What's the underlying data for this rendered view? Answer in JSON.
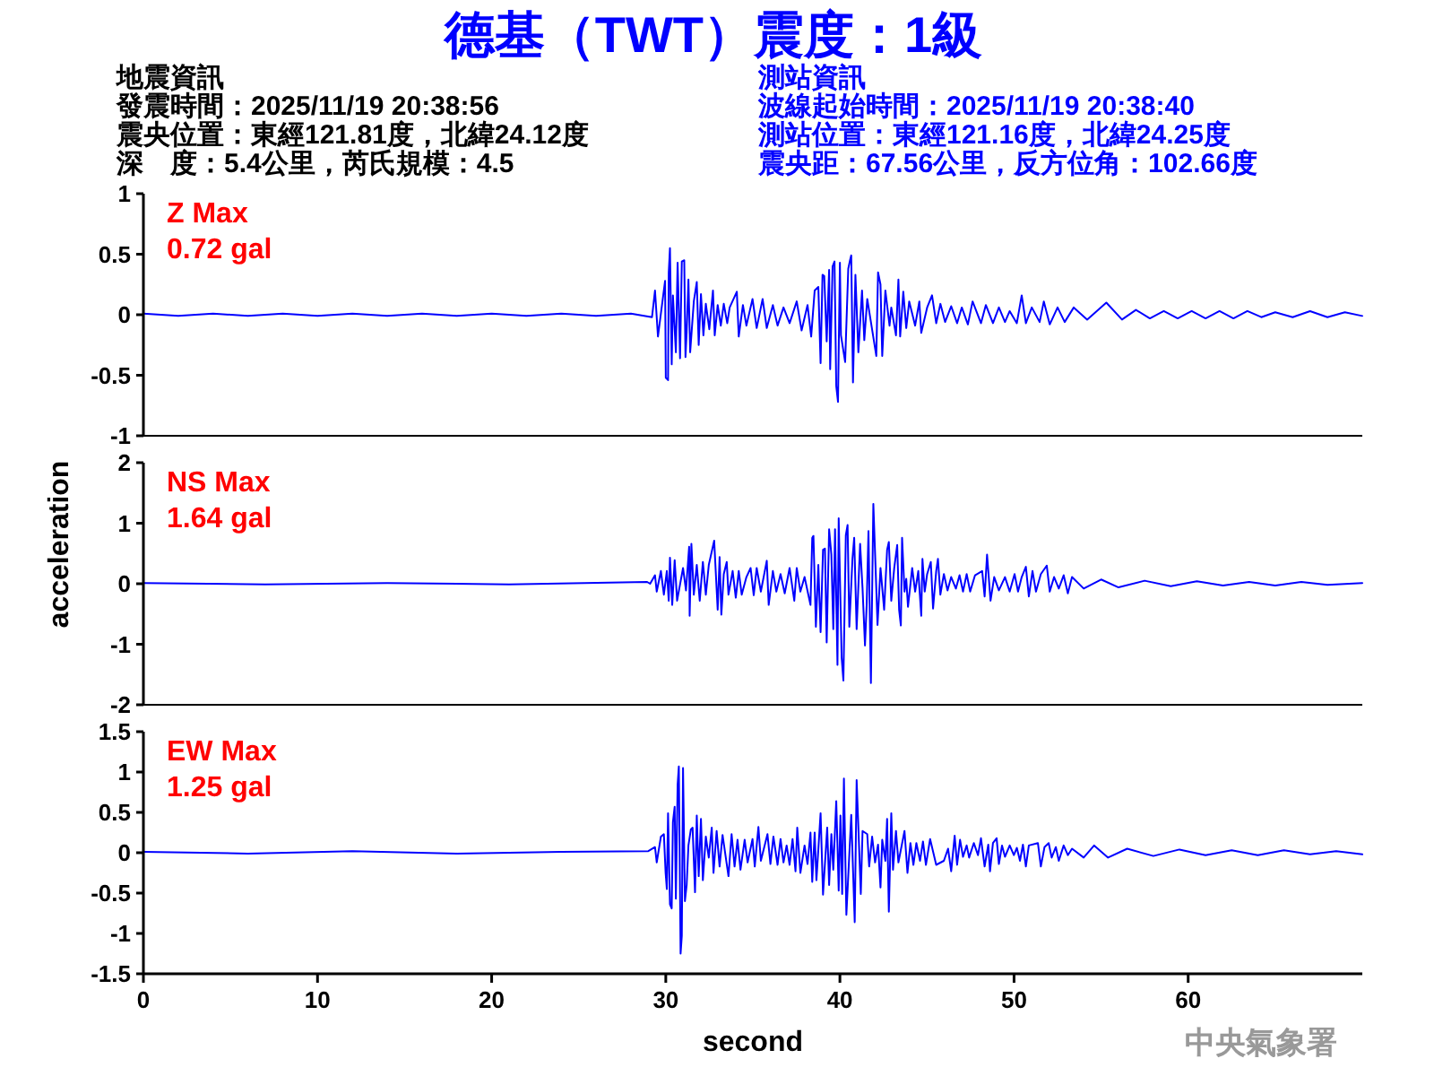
{
  "chart_data": [
    {
      "type": "line",
      "title": "德基（TWT）震度：1級",
      "annotations": [
        "Z Max",
        "0.72 gal",
        "地震資訊",
        "發震時間：2025/11/19 20:38:56",
        "震央位置：東經121.81度，北緯24.12度",
        "深　度：5.4公里，芮氏規模：4.5",
        "測站資訊",
        "波線起始時間：2025/11/19 20:38:40",
        "測站位置：東經121.16度，北緯24.25度",
        "震央距：67.56公里，反方位角：102.66度"
      ],
      "x": [
        0,
        2,
        4,
        6,
        8,
        10,
        12,
        14,
        16,
        18,
        20,
        22,
        24,
        26,
        28,
        29.21,
        29.38,
        29.55,
        29.96,
        30.0,
        30.13,
        30.17,
        30.24,
        30.34,
        30.41,
        30.58,
        30.68,
        30.82,
        30.92,
        31.06,
        31.13,
        31.2,
        31.3,
        31.4,
        31.61,
        31.78,
        31.89,
        32.02,
        32.16,
        32.3,
        32.5,
        32.71,
        32.81,
        32.98,
        33.16,
        33.33,
        33.53,
        33.67,
        34.08,
        34.19,
        34.43,
        34.63,
        34.98,
        35.22,
        35.56,
        35.8,
        36.15,
        36.42,
        36.76,
        37.11,
        37.52,
        37.8,
        38.14,
        38.35,
        38.55,
        38.76,
        38.89,
        39.0,
        39.1,
        39.24,
        39.38,
        39.44,
        39.58,
        39.69,
        39.79,
        39.89,
        40.0,
        40.06,
        40.3,
        40.48,
        40.58,
        40.65,
        40.75,
        40.89,
        41.06,
        41.27,
        41.4,
        41.57,
        42.09,
        42.19,
        42.33,
        42.43,
        42.61,
        42.85,
        42.95,
        43.22,
        43.36,
        43.46,
        43.64,
        43.81,
        43.98,
        44.32,
        44.56,
        44.67,
        45.01,
        45.29,
        45.53,
        45.77,
        46.04,
        46.39,
        46.73,
        47.0,
        47.35,
        47.62,
        48.1,
        48.38,
        48.79,
        49.13,
        49.48,
        49.75,
        50.16,
        50.44,
        50.68,
        51.02,
        51.47,
        51.71,
        52.05,
        52.5,
        52.91,
        53.43,
        54.2,
        55.3,
        56.2,
        57.0,
        57.8,
        58.6,
        59.4,
        60.2,
        61.0,
        61.8,
        62.6,
        63.4,
        64.2,
        65.0,
        66.0,
        67.0,
        68.0,
        69.0,
        70
      ],
      "series": [
        {
          "color": "#0000ff",
          "values": [
            0.01,
            -0.01,
            0.01,
            -0.01,
            0.01,
            -0.01,
            0.01,
            -0.01,
            0.01,
            -0.01,
            0.01,
            -0.01,
            0.01,
            -0.01,
            0.01,
            -0.02,
            0.2,
            -0.18,
            0.28,
            -0.52,
            -0.54,
            0.35,
            0.55,
            -0.41,
            0.16,
            -0.31,
            0.43,
            -0.36,
            0.44,
            0.45,
            -0.35,
            -0.14,
            0.29,
            -0.31,
            0.11,
            0.27,
            -0.25,
            0.17,
            -0.17,
            0.09,
            -0.12,
            0.2,
            -0.17,
            0.08,
            -0.09,
            0.09,
            -0.07,
            0.06,
            0.19,
            -0.18,
            0.08,
            -0.09,
            0.13,
            -0.11,
            0.13,
            -0.11,
            0.08,
            -0.09,
            0.06,
            -0.07,
            0.11,
            -0.13,
            0.08,
            -0.18,
            0.2,
            0.23,
            -0.4,
            0.33,
            0.32,
            -0.22,
            0.37,
            -0.45,
            0.4,
            0.44,
            -0.59,
            -0.72,
            0.43,
            -0.17,
            -0.39,
            0.38,
            0.45,
            0.49,
            -0.56,
            0.33,
            -0.31,
            0.2,
            -0.21,
            0.13,
            -0.34,
            0.35,
            0.25,
            -0.34,
            0.2,
            -0.09,
            0.06,
            -0.17,
            0.29,
            -0.18,
            0.19,
            -0.11,
            0.11,
            -0.09,
            0.11,
            -0.15,
            0.06,
            0.16,
            -0.07,
            0.09,
            -0.06,
            0.07,
            -0.07,
            0.06,
            -0.08,
            0.11,
            -0.07,
            0.08,
            -0.07,
            0.06,
            -0.06,
            0.03,
            -0.07,
            0.16,
            -0.07,
            0.06,
            -0.06,
            0.11,
            -0.08,
            0.06,
            -0.06,
            0.06,
            -0.04,
            0.1,
            -0.04,
            0.04,
            -0.03,
            0.03,
            -0.03,
            0.03,
            -0.03,
            0.03,
            -0.03,
            0.03,
            -0.02,
            0.02,
            -0.02,
            0.03,
            -0.02,
            0.02,
            -0.01
          ]
        }
      ],
      "xlim": [
        0,
        70
      ],
      "ylim": [
        -1,
        1
      ],
      "yticks": [
        1,
        0.5,
        0,
        -0.5,
        -1
      ],
      "tick_labels": "y"
    },
    {
      "type": "line",
      "ylabel": "acceleration",
      "annotations": [
        "NS Max",
        "1.64 gal"
      ],
      "x": [
        0,
        7,
        14,
        21,
        28.93,
        29.1,
        29.38,
        29.48,
        29.72,
        29.89,
        30.06,
        30.17,
        30.24,
        30.37,
        30.51,
        30.65,
        30.99,
        31.16,
        31.34,
        31.37,
        31.47,
        31.61,
        31.78,
        31.95,
        32.13,
        32.3,
        32.47,
        32.78,
        32.98,
        33.09,
        33.19,
        33.33,
        33.5,
        33.6,
        33.84,
        34.02,
        34.19,
        34.36,
        34.63,
        34.87,
        35.05,
        35.22,
        35.46,
        35.8,
        35.91,
        36.15,
        36.35,
        36.59,
        36.83,
        37.11,
        37.38,
        37.52,
        37.73,
        37.97,
        38.31,
        38.41,
        38.48,
        38.62,
        38.76,
        38.89,
        39.03,
        39.14,
        39.24,
        39.38,
        39.51,
        39.62,
        39.72,
        39.86,
        39.93,
        40.1,
        40.2,
        40.34,
        40.44,
        40.54,
        40.72,
        40.82,
        40.96,
        41.16,
        41.3,
        41.44,
        41.54,
        41.64,
        41.78,
        41.92,
        42.09,
        42.16,
        42.33,
        42.54,
        42.71,
        42.81,
        42.95,
        43.12,
        43.29,
        43.4,
        43.5,
        43.57,
        43.71,
        43.81,
        43.91,
        44.15,
        44.32,
        44.5,
        44.67,
        44.74,
        44.87,
        45.01,
        45.22,
        45.35,
        45.53,
        45.63,
        45.77,
        45.97,
        46.18,
        46.39,
        46.66,
        46.87,
        47.07,
        47.28,
        47.48,
        47.76,
        48.17,
        48.31,
        48.45,
        48.65,
        48.86,
        49.13,
        49.48,
        49.75,
        50.03,
        50.23,
        50.44,
        50.68,
        50.85,
        51.06,
        51.26,
        51.54,
        51.88,
        52.05,
        52.3,
        52.57,
        52.85,
        53.09,
        53.33,
        54.0,
        55.0,
        56.0,
        57.5,
        59.0,
        60.5,
        62.0,
        63.5,
        65.0,
        66.5,
        68.0,
        70
      ],
      "series": [
        {
          "color": "#0000ff",
          "values": [
            0.01,
            -0.01,
            0.01,
            -0.01,
            0.03,
            0.0,
            0.14,
            -0.13,
            0.21,
            -0.18,
            0.21,
            -0.28,
            0.43,
            -0.35,
            0.39,
            -0.28,
            0.26,
            -0.11,
            0.61,
            -0.53,
            0.66,
            -0.18,
            0.31,
            -0.28,
            0.36,
            -0.18,
            0.31,
            0.71,
            -0.43,
            0.44,
            -0.51,
            0.16,
            0.36,
            -0.18,
            0.21,
            -0.23,
            0.21,
            -0.18,
            0.11,
            0.26,
            -0.19,
            0.26,
            -0.13,
            0.38,
            -0.35,
            0.21,
            -0.13,
            0.16,
            -0.16,
            0.26,
            -0.28,
            0.26,
            -0.13,
            0.11,
            -0.35,
            0.76,
            0.79,
            -0.71,
            0.31,
            -0.8,
            0.56,
            0.58,
            -0.97,
            0.9,
            0.48,
            -0.75,
            0.9,
            -1.34,
            1.08,
            -1.22,
            -1.6,
            0.8,
            0.97,
            -0.71,
            0.41,
            0.76,
            -0.75,
            0.66,
            -0.08,
            -1.02,
            -0.33,
            0.87,
            -1.64,
            1.32,
            -0.08,
            -0.68,
            0.26,
            -0.43,
            0.56,
            0.69,
            -0.28,
            0.26,
            0.64,
            -0.43,
            -0.69,
            0.76,
            -0.13,
            0.08,
            -0.38,
            0.26,
            -0.13,
            0.21,
            -0.53,
            0.41,
            -0.13,
            0.16,
            0.36,
            -0.41,
            0.21,
            0.41,
            -0.18,
            0.16,
            -0.11,
            0.11,
            -0.08,
            0.14,
            -0.13,
            0.16,
            -0.13,
            0.14,
            0.21,
            -0.21,
            0.48,
            -0.28,
            0.11,
            -0.11,
            0.11,
            -0.13,
            0.16,
            -0.13,
            0.11,
            0.28,
            -0.21,
            0.21,
            -0.13,
            0.16,
            0.3,
            -0.13,
            0.11,
            -0.08,
            0.14,
            -0.16,
            0.11,
            -0.08,
            0.07,
            -0.06,
            0.05,
            -0.04,
            0.04,
            -0.03,
            0.03,
            -0.03,
            0.03,
            -0.02,
            0.01
          ]
        }
      ],
      "xlim": [
        0,
        70
      ],
      "ylim": [
        -2,
        2
      ],
      "yticks": [
        2,
        1,
        0,
        -1,
        -2
      ],
      "tick_labels": "y"
    },
    {
      "type": "line",
      "xlabel": "second",
      "annotations": [
        "EW Max",
        "1.25 gal",
        "中央氣象署"
      ],
      "x": [
        0,
        6,
        12,
        18,
        24,
        29.0,
        29.38,
        29.48,
        29.72,
        29.89,
        29.99,
        30.06,
        30.13,
        30.24,
        30.34,
        30.41,
        30.51,
        30.58,
        30.68,
        30.75,
        30.85,
        30.92,
        30.99,
        31.1,
        31.2,
        31.3,
        31.44,
        31.54,
        31.68,
        31.78,
        31.89,
        32.02,
        32.13,
        32.3,
        32.47,
        32.64,
        32.74,
        32.92,
        33.09,
        33.26,
        33.6,
        33.78,
        33.95,
        34.12,
        34.29,
        34.53,
        34.7,
        34.98,
        35.11,
        35.32,
        35.46,
        35.84,
        36.01,
        36.18,
        36.42,
        36.59,
        36.76,
        36.94,
        37.11,
        37.28,
        37.45,
        37.55,
        37.73,
        37.97,
        38.14,
        38.31,
        38.41,
        38.55,
        38.65,
        38.89,
        39.03,
        39.27,
        39.38,
        39.51,
        39.62,
        39.79,
        39.93,
        40.03,
        40.13,
        40.23,
        40.37,
        40.65,
        40.85,
        40.96,
        41.2,
        41.3,
        41.57,
        41.68,
        41.85,
        42.02,
        42.19,
        42.33,
        42.43,
        42.61,
        42.71,
        42.81,
        42.95,
        43.05,
        43.22,
        43.36,
        43.71,
        43.88,
        44.05,
        44.22,
        44.39,
        44.6,
        44.77,
        44.94,
        45.18,
        45.53,
        45.97,
        46.21,
        46.39,
        46.59,
        46.73,
        46.9,
        47.07,
        47.28,
        47.42,
        47.69,
        47.93,
        48.1,
        48.31,
        48.52,
        48.62,
        48.79,
        49.0,
        49.13,
        49.31,
        49.48,
        49.75,
        49.99,
        50.16,
        50.34,
        50.51,
        50.68,
        50.85,
        51.37,
        51.54,
        51.75,
        51.99,
        52.16,
        52.4,
        52.57,
        52.85,
        53.09,
        53.33,
        54.0,
        54.6,
        55.4,
        56.5,
        58.0,
        59.5,
        61.0,
        62.5,
        64.0,
        65.5,
        67.0,
        68.5,
        70
      ],
      "series": [
        {
          "color": "#0000ff",
          "values": [
            0.01,
            -0.01,
            0.02,
            -0.01,
            0.01,
            0.02,
            0.07,
            -0.12,
            0.2,
            0.23,
            -0.25,
            -0.45,
            0.49,
            -0.64,
            -0.69,
            0.38,
            0.57,
            -0.57,
            0.84,
            1.07,
            -1.25,
            -1.03,
            1.05,
            -0.6,
            -0.4,
            0.09,
            0.29,
            0.31,
            -0.49,
            0.46,
            -0.29,
            0.42,
            -0.34,
            0.2,
            -0.06,
            0.31,
            -0.25,
            0.27,
            -0.17,
            0.22,
            -0.29,
            0.23,
            -0.17,
            0.16,
            -0.21,
            0.16,
            -0.12,
            0.17,
            -0.17,
            0.32,
            -0.1,
            0.23,
            -0.14,
            0.2,
            -0.15,
            0.17,
            -0.12,
            0.09,
            -0.15,
            0.17,
            -0.23,
            0.31,
            -0.25,
            0.09,
            -0.14,
            0.25,
            -0.36,
            0.25,
            -0.34,
            0.49,
            -0.52,
            0.31,
            -0.4,
            0.23,
            -0.21,
            0.64,
            -0.47,
            0.46,
            -0.51,
            0.92,
            -0.77,
            0.47,
            -0.86,
            0.9,
            -0.51,
            0.27,
            0.23,
            -0.17,
            0.2,
            -0.12,
            0.1,
            -0.43,
            0.16,
            -0.1,
            0.42,
            -0.73,
            0.49,
            -0.21,
            0.27,
            -0.12,
            0.27,
            -0.25,
            0.12,
            -0.15,
            0.12,
            -0.1,
            0.14,
            -0.15,
            0.17,
            -0.15,
            -0.1,
            0.05,
            -0.23,
            0.21,
            -0.15,
            0.16,
            -0.05,
            0.09,
            -0.06,
            0.12,
            -0.03,
            0.18,
            -0.17,
            0.1,
            -0.23,
            0.12,
            0.18,
            -0.14,
            0.09,
            -0.05,
            0.09,
            -0.03,
            0.06,
            -0.1,
            0.1,
            -0.17,
            0.09,
            0.12,
            -0.17,
            0.07,
            0.12,
            -0.06,
            0.07,
            -0.1,
            0.09,
            -0.03,
            0.05,
            -0.06,
            0.09,
            -0.06,
            0.05,
            -0.04,
            0.04,
            -0.03,
            0.03,
            -0.03,
            0.03,
            -0.02,
            0.02,
            -0.02
          ]
        }
      ],
      "xlim": [
        0,
        70
      ],
      "ylim": [
        -1.5,
        1.5
      ],
      "xticks": [
        0,
        10,
        20,
        30,
        40,
        50,
        60
      ],
      "yticks": [
        1.5,
        1,
        0.5,
        0,
        -0.5,
        -1,
        -1.5
      ]
    }
  ]
}
